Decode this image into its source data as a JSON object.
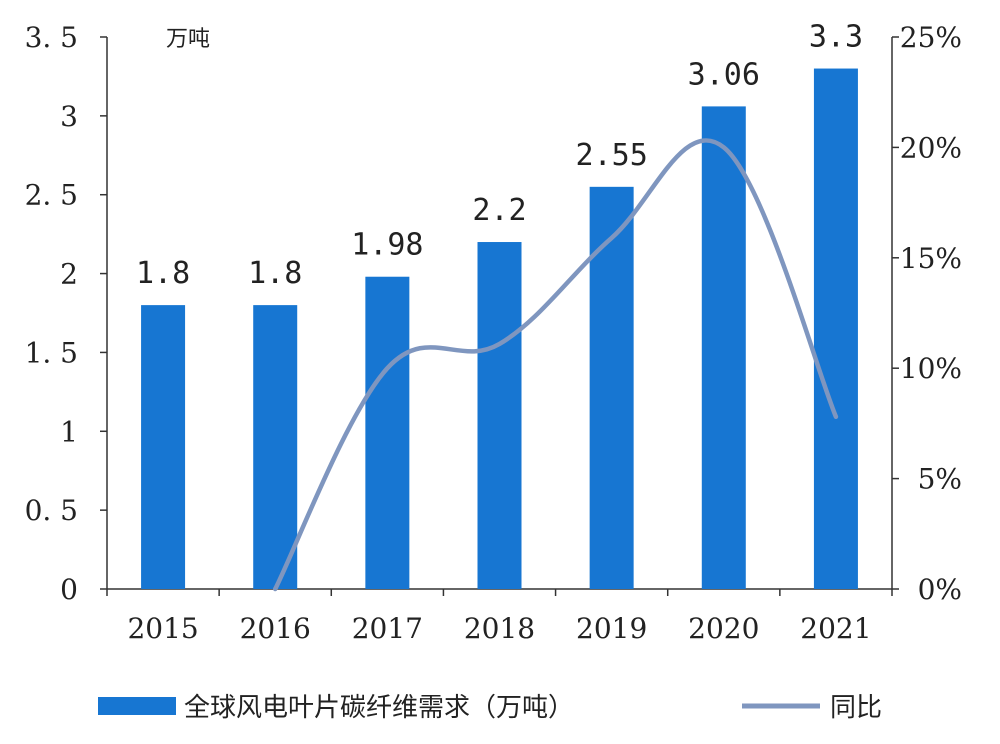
{
  "chart_data": {
    "type": "bar",
    "categories": [
      "2015",
      "2016",
      "2017",
      "2018",
      "2019",
      "2020",
      "2021"
    ],
    "series": [
      {
        "name": "全球风电叶片碳纤维需求（万吨）",
        "type": "bar",
        "axis": "left",
        "color": "#1776D2",
        "values": [
          1.8,
          1.8,
          1.98,
          2.2,
          2.55,
          3.06,
          3.3
        ],
        "data_labels": [
          "1.8",
          "1.8",
          "1.98",
          "2.2",
          "2.55",
          "3.06",
          "3.3"
        ]
      },
      {
        "name": "同比",
        "type": "line",
        "axis": "right",
        "color": "#7F96BF",
        "values": [
          null,
          0,
          10,
          11.1,
          15.9,
          20,
          7.8
        ]
      }
    ],
    "left_axis": {
      "unit": "万吨",
      "ylim": [
        0,
        3.5
      ],
      "ticks": [
        0,
        0.5,
        1,
        1.5,
        2,
        2.5,
        3,
        3.5
      ],
      "tick_labels": [
        "0",
        "0. 5",
        "1",
        "1. 5",
        "2",
        "2. 5",
        "3",
        "3. 5"
      ]
    },
    "right_axis": {
      "ylim": [
        0,
        25
      ],
      "ticks": [
        0,
        5,
        10,
        15,
        20,
        25
      ],
      "tick_labels": [
        "0%",
        "5%",
        "10%",
        "15%",
        "20%",
        "25%"
      ]
    },
    "grid": false,
    "legend": {
      "placement": "bottom",
      "bar_label": "全球风电叶片碳纤维需求（万吨）",
      "line_label": "同比"
    }
  }
}
